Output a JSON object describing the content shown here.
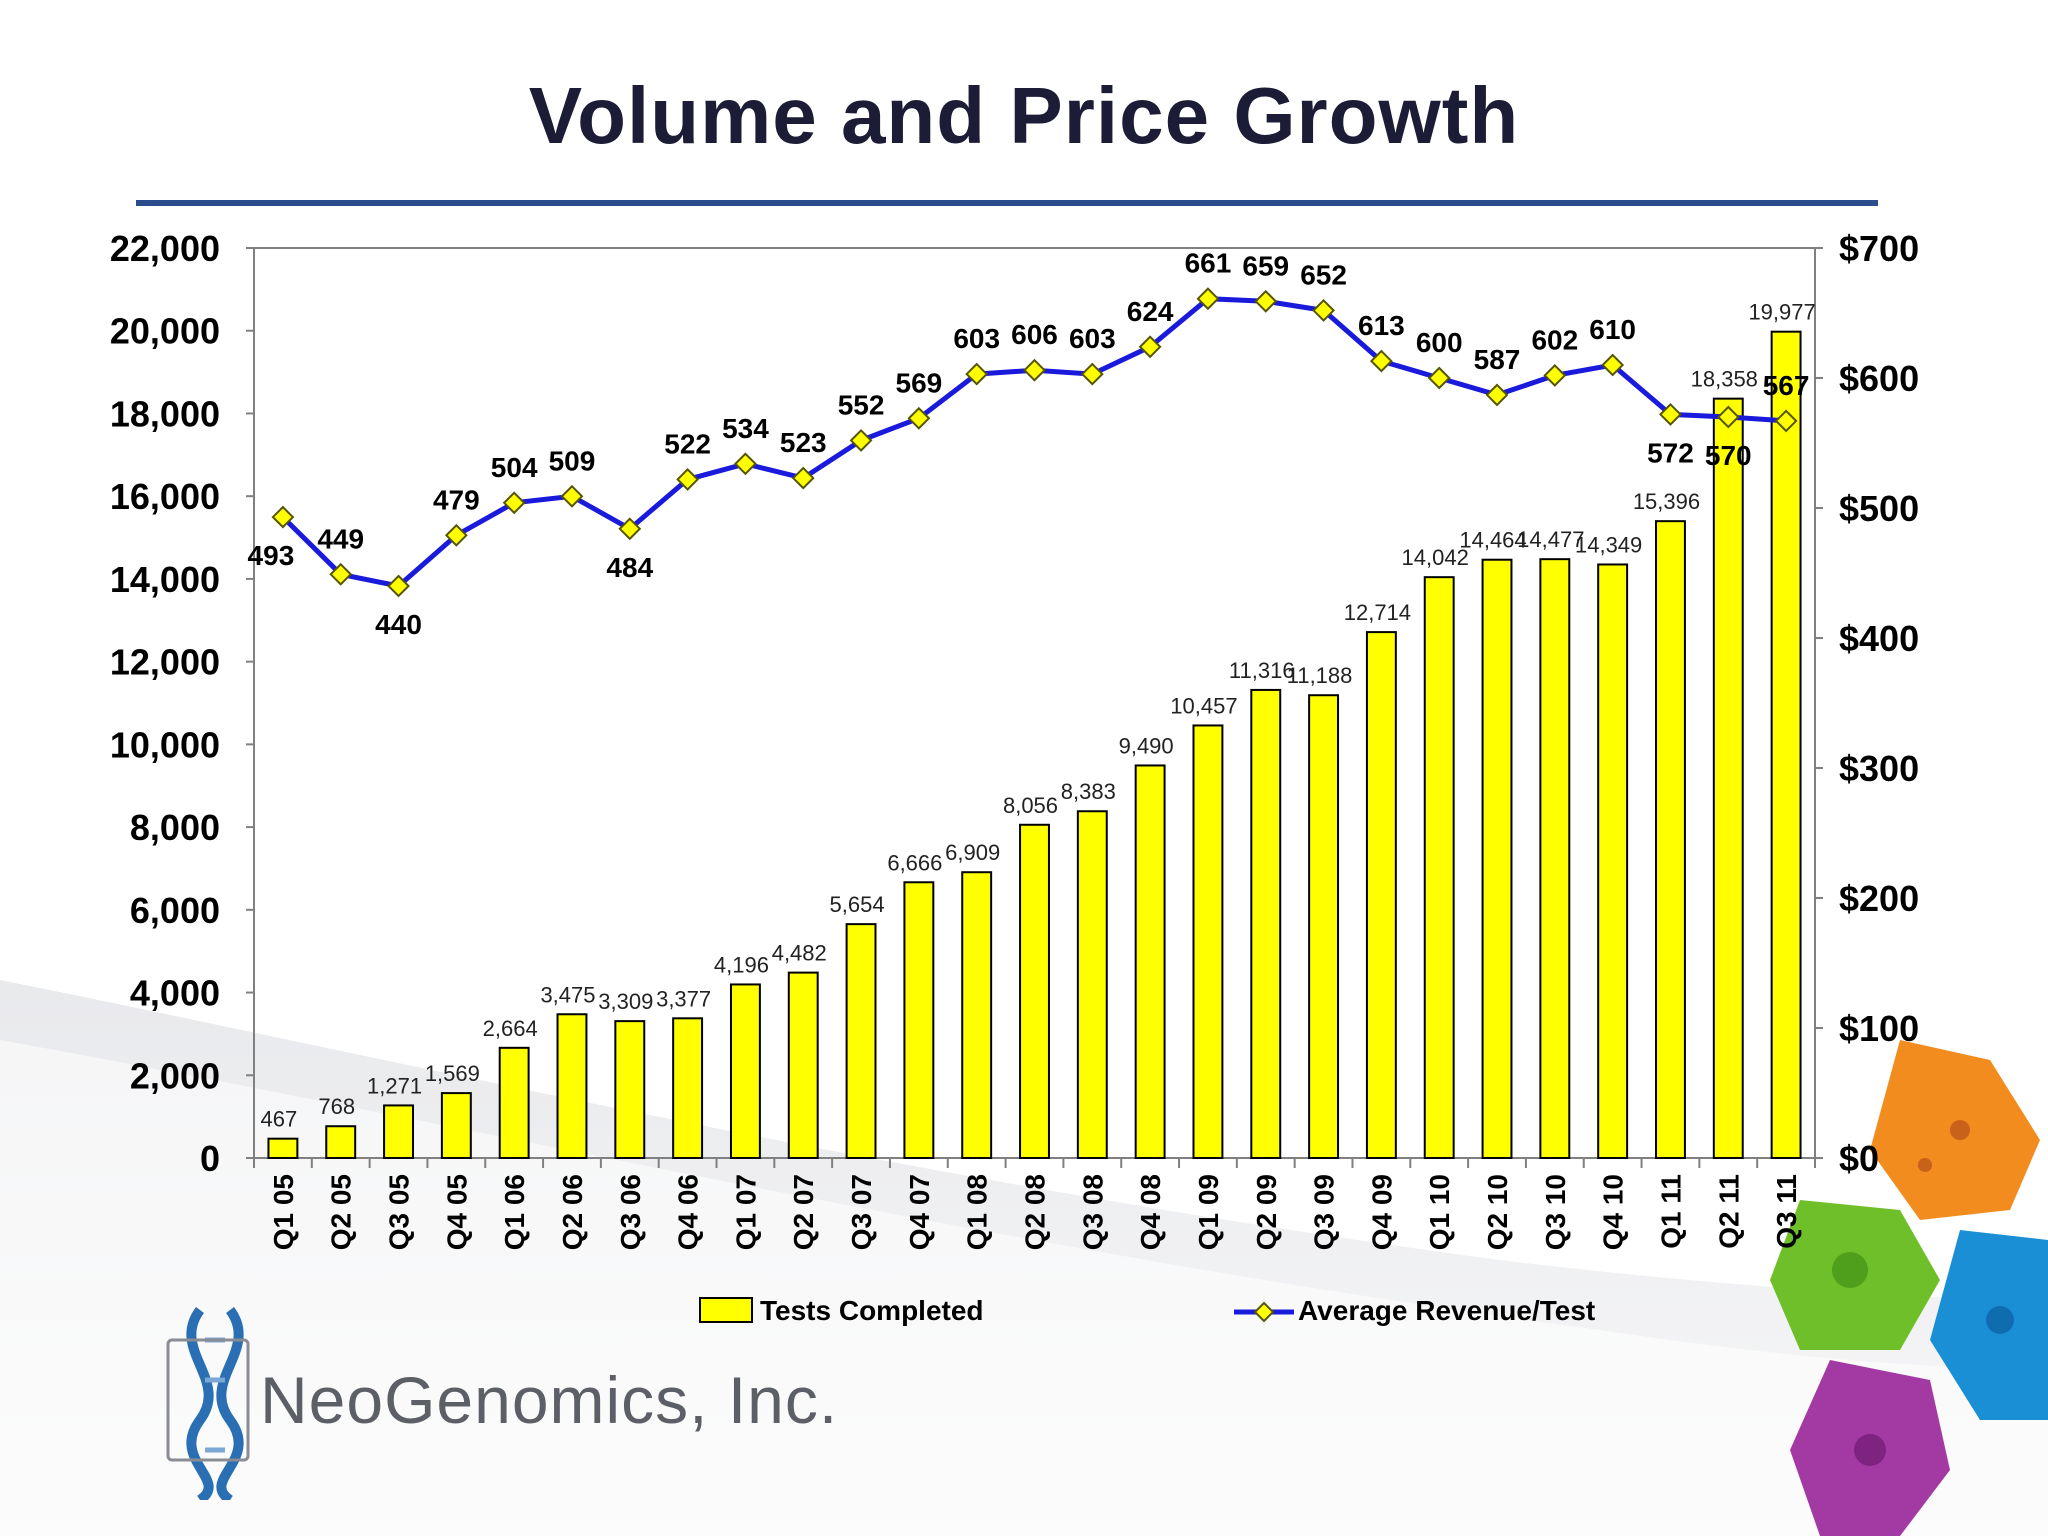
{
  "slide": {
    "title": "Volume and Price Growth",
    "logo_text": "NeoGenomics, Inc."
  },
  "colors": {
    "title": "#1c1c36",
    "rule": "#2b4d8c",
    "bar_fill": "#ffff00",
    "bar_stroke": "#000000",
    "line": "#1a1adc",
    "marker_fill": "#ffff00",
    "marker_stroke": "#555500"
  },
  "chart_data": {
    "type": "bar+line",
    "title": "Volume and Price Growth",
    "categories": [
      "Q1 05",
      "Q2 05",
      "Q3 05",
      "Q4 05",
      "Q1 06",
      "Q2 06",
      "Q3 06",
      "Q4 06",
      "Q1 07",
      "Q2 07",
      "Q3 07",
      "Q4 07",
      "Q1 08",
      "Q2 08",
      "Q3 08",
      "Q4 08",
      "Q1 09",
      "Q2 09",
      "Q3 09",
      "Q4 09",
      "Q1 10",
      "Q2 10",
      "Q3 10",
      "Q4 10",
      "Q1 11",
      "Q2 11",
      "Q3 11"
    ],
    "series": [
      {
        "name": "Tests Completed",
        "type": "bar",
        "axis": "left",
        "values": [
          467,
          768,
          1271,
          1569,
          2664,
          3475,
          3309,
          3377,
          4196,
          4482,
          5654,
          6666,
          6909,
          8056,
          8383,
          9490,
          10457,
          11316,
          11188,
          12714,
          14042,
          14464,
          14477,
          14349,
          15396,
          18358,
          19977
        ],
        "labels": [
          "467",
          "768",
          "1,271",
          "1,569",
          "2,664",
          "3,475",
          "3,309",
          "3,377",
          "4,196",
          "4,482",
          "5,654",
          "6,666",
          "6,909",
          "8,056",
          "8,383",
          "9,490",
          "10,457",
          "11,316",
          "11,188",
          "12,714",
          "14,042",
          "14,464",
          "14,477",
          "14,349",
          "15,396",
          "18,358",
          "19,977"
        ]
      },
      {
        "name": "Average Revenue/Test",
        "type": "line",
        "axis": "right",
        "values": [
          493,
          449,
          440,
          479,
          504,
          509,
          484,
          522,
          534,
          523,
          552,
          569,
          603,
          606,
          603,
          624,
          661,
          659,
          652,
          613,
          600,
          587,
          602,
          610,
          572,
          570,
          567
        ],
        "labels": [
          "493",
          "449",
          "440",
          "479",
          "504",
          "509",
          "484",
          "522",
          "534",
          "523",
          "552",
          "569",
          "603",
          "606",
          "603",
          "624",
          "661",
          "659",
          "652",
          "613",
          "600",
          "587",
          "602",
          "610",
          "572",
          "570",
          "567"
        ]
      }
    ],
    "y_left": {
      "range": [
        0,
        22000
      ],
      "ticks": [
        0,
        2000,
        4000,
        6000,
        8000,
        10000,
        12000,
        14000,
        16000,
        18000,
        20000,
        22000
      ],
      "tick_labels": [
        "0",
        "2,000",
        "4,000",
        "6,000",
        "8,000",
        "10,000",
        "12,000",
        "14,000",
        "16,000",
        "18,000",
        "20,000",
        "22,000"
      ]
    },
    "y_right": {
      "range": [
        0,
        700
      ],
      "ticks": [
        0,
        100,
        200,
        300,
        400,
        500,
        600,
        700
      ],
      "tick_labels": [
        "$0",
        "$100",
        "$200",
        "$300",
        "$400",
        "$500",
        "$600",
        "$700"
      ]
    },
    "grid": false,
    "legend": {
      "position": "bottom",
      "entries": [
        "Tests Completed",
        "Average Revenue/Test"
      ]
    }
  }
}
